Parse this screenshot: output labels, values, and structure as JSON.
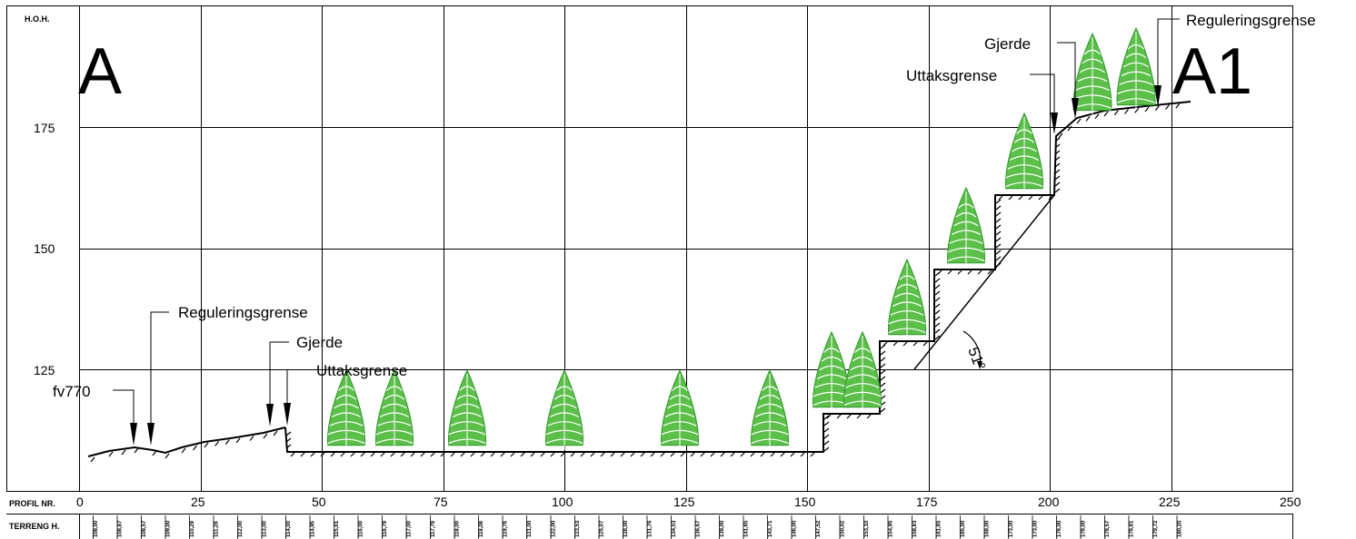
{
  "header": {
    "hoh_label": "H.O.H.",
    "profil_label": "PROFIL NR.",
    "terreng_label": "TERRENG H."
  },
  "markers": {
    "start": "A",
    "end": "A1"
  },
  "y_ticks": [
    175,
    150,
    125
  ],
  "x_ticks": [
    0,
    25,
    50,
    75,
    100,
    125,
    150,
    175,
    200,
    225,
    250
  ],
  "terrain_heights": [
    "108,00",
    "108,87",
    "108,57",
    "109,00",
    "110,29",
    "111,28",
    "112,00",
    "113,00",
    "114,00",
    "114,95",
    "115,61",
    "116,00",
    "116,79",
    "117,00",
    "117,79",
    "118,00",
    "118,08",
    "119,76",
    "121,00",
    "122,00",
    "123,53",
    "125,07",
    "128,00",
    "131,76",
    "134,53",
    "136,67",
    "139,00",
    "141,65",
    "143,71",
    "146,00",
    "147,52",
    "150,02",
    "153,10",
    "154,95",
    "158,63",
    "161,65",
    "165,00",
    "168,00",
    "173,00",
    "173,00",
    "176,00",
    "178,00",
    "178,57",
    "178,81",
    "179,72",
    "180,20"
  ],
  "labels": {
    "left_reg": "Reguleringsgrense",
    "left_gjerde": "Gjerde",
    "left_uttak": "Uttaksgrense",
    "road": "fv770",
    "right_reg": "Reguleringsgrense",
    "right_gjerde": "Gjerde",
    "right_uttak": "Uttaksgrense",
    "angle": "51°"
  },
  "colors": {
    "tree": "#5cbf4a",
    "tree_dark": "#2f9a2a",
    "ink": "#000000",
    "hatch": "#000000"
  }
}
